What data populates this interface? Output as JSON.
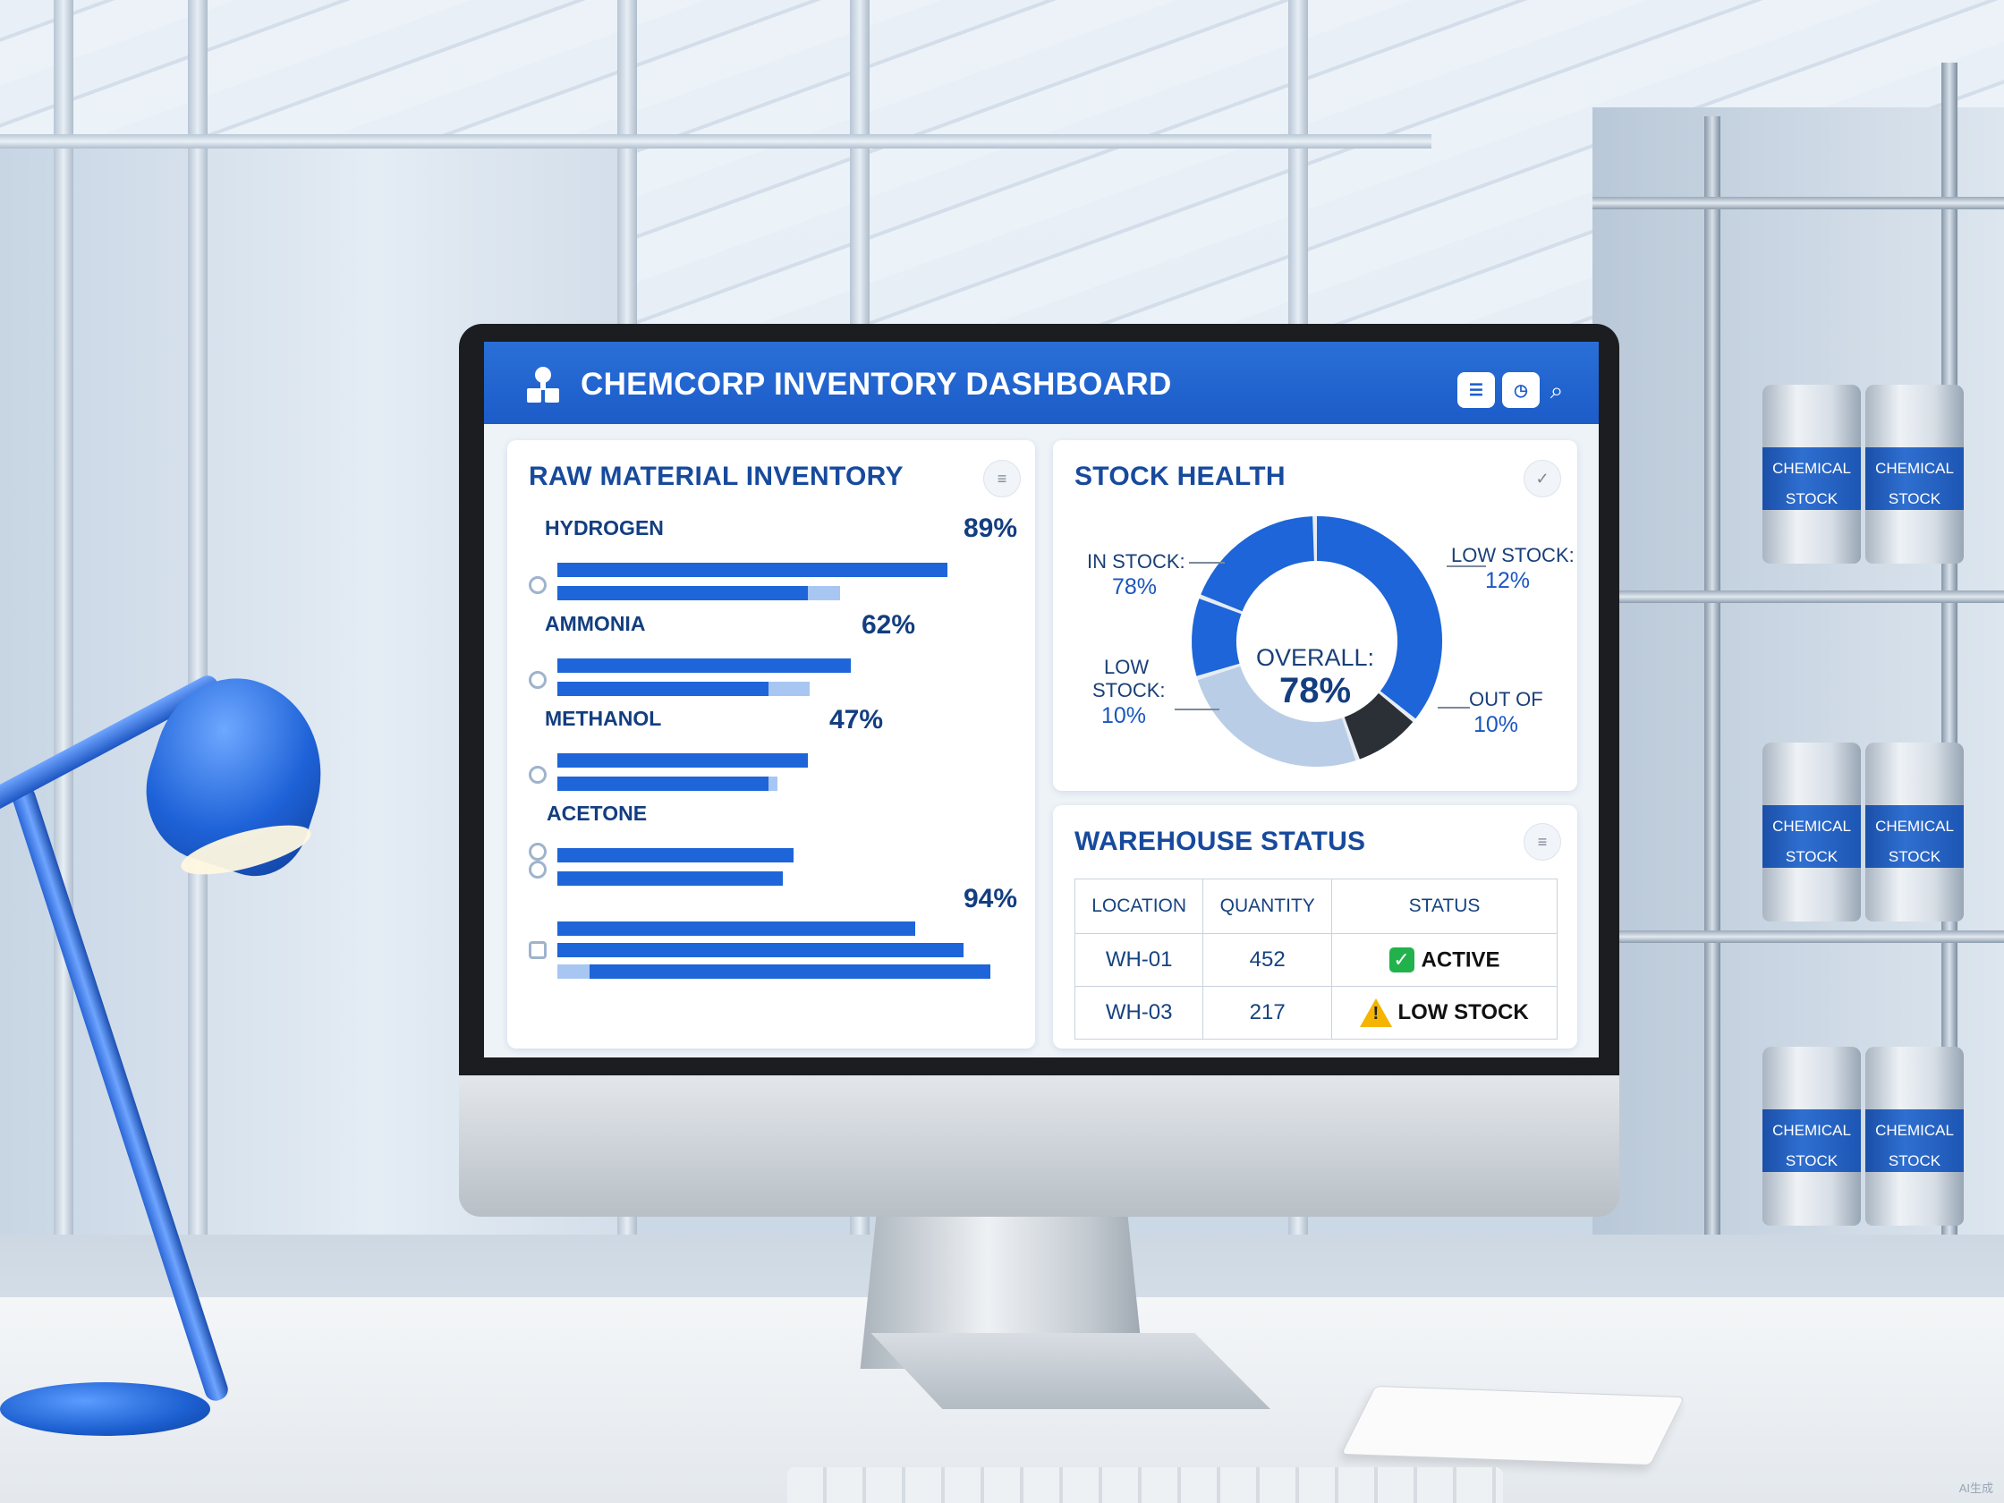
{
  "header": {
    "title": "CHEMCORP INVENTORY DASHBOARD",
    "icons": [
      "logo-icon",
      "list-icon",
      "clock-icon",
      "search-icon"
    ]
  },
  "raw_material": {
    "title": "RAW MATERIAL INVENTORY",
    "items": [
      {
        "label": "HYDROGEN",
        "percent": "89%"
      },
      {
        "label": "AMMONIA",
        "percent": "62%"
      },
      {
        "label": "METHANOL",
        "percent": "47%"
      },
      {
        "label": "ACETONE",
        "percent": ""
      },
      {
        "label": "",
        "percent": "94%"
      }
    ]
  },
  "stock_health": {
    "title": "STOCK HEALTH",
    "overall_label": "OVERALL:",
    "overall_value": "78%",
    "in_stock_label": "IN STOCK:",
    "in_stock_value": "78%",
    "low_stock_right_label": "LOW STOCK:",
    "low_stock_right_value": "12%",
    "low_stock_left_label_1": "LOW",
    "low_stock_left_label_2": "STOCK:",
    "low_stock_left_value": "10%",
    "out_of_label": "OUT OF",
    "out_of_value": "10%"
  },
  "warehouse": {
    "title": "WAREHOUSE STATUS",
    "columns": [
      "LOCATION",
      "QUANTITY",
      "STATUS"
    ],
    "rows": [
      {
        "location": "WH-01",
        "quantity": "452",
        "status": "ACTIVE"
      },
      {
        "location": "WH-03",
        "quantity": "217",
        "status": "LOW STOCK"
      }
    ]
  },
  "background": {
    "drum_label_1": "CHEMICAL",
    "drum_label_2": "STOCK"
  },
  "colors": {
    "brand_blue": "#1c5cc8",
    "bar_blue": "#1d65d8",
    "ok_green": "#22b24c",
    "warn_yellow": "#f4b400"
  }
}
